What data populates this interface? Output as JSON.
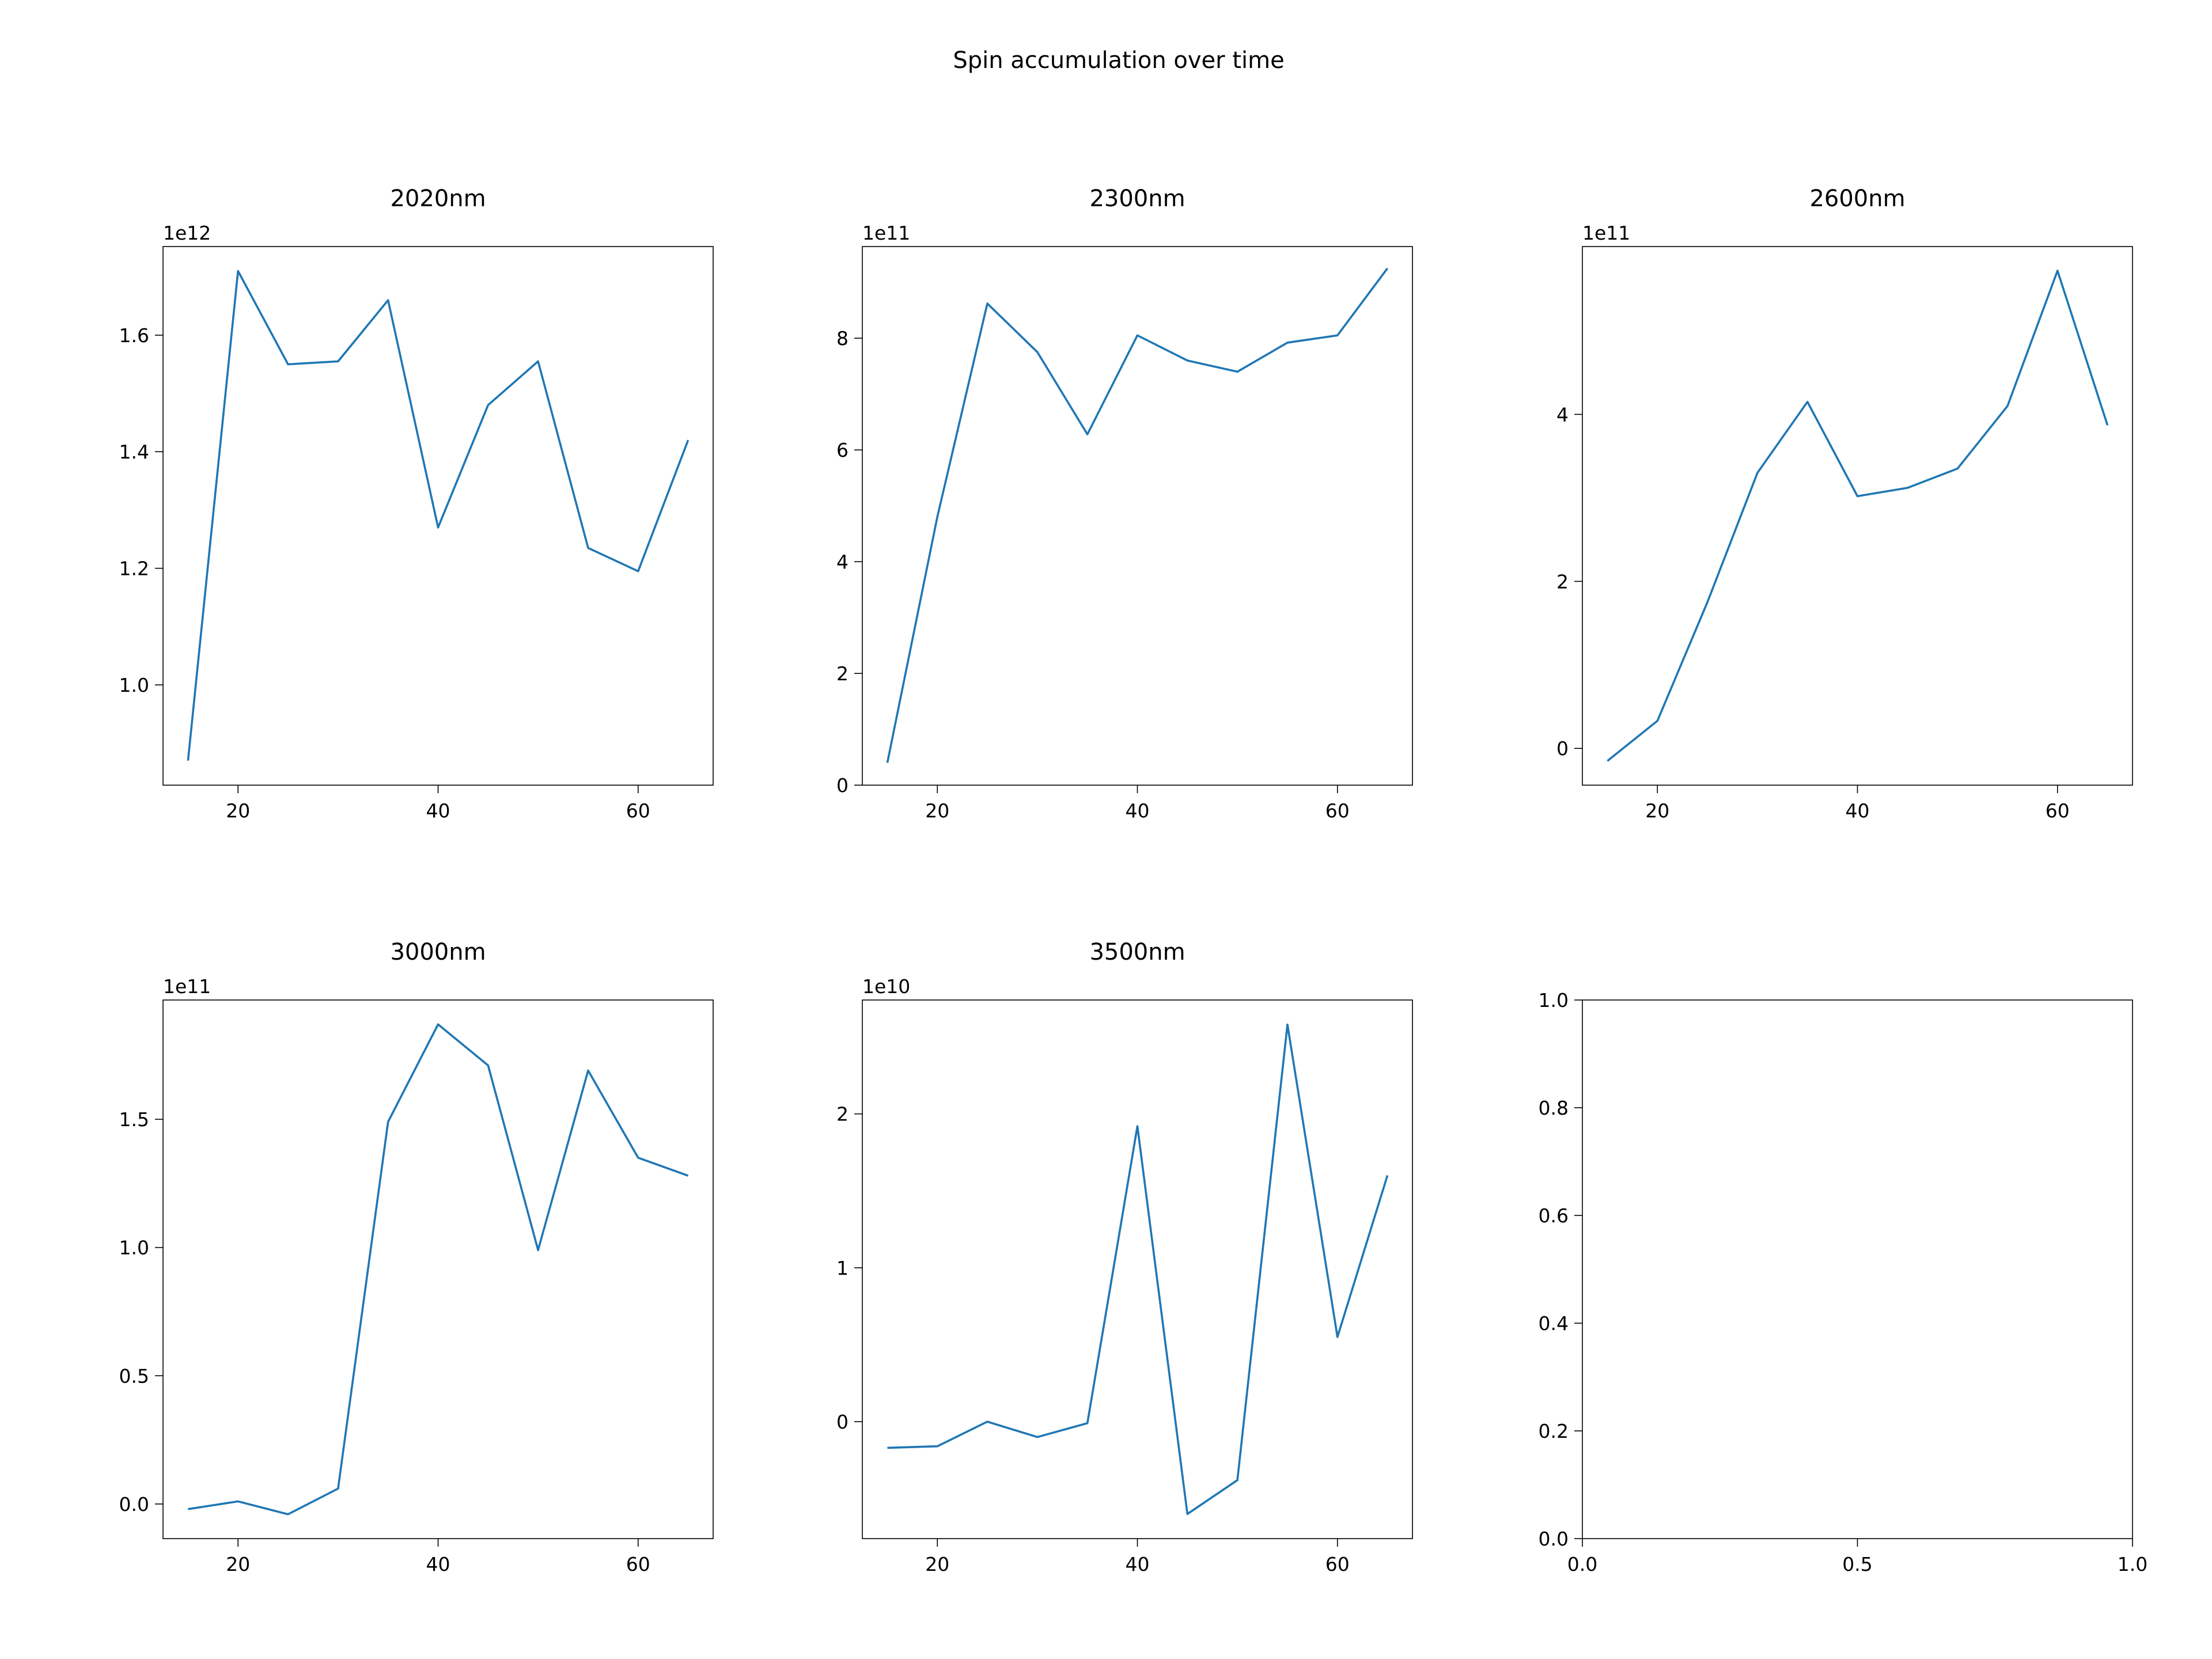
{
  "figure": {
    "suptitle": "Spin accumulation over time",
    "line_color": "#1f77b4"
  },
  "chart_data": [
    {
      "type": "line",
      "title": "2020nm",
      "xlabel": "",
      "ylabel": "",
      "offset_text": "1e12",
      "scale": 1000000000000.0,
      "x": [
        15,
        20,
        25,
        30,
        35,
        40,
        45,
        50,
        55,
        60,
        65
      ],
      "series": [
        {
          "values": [
            0.87,
            1.71,
            1.55,
            1.555,
            1.66,
            1.27,
            1.48,
            1.555,
            1.235,
            1.195,
            1.42
          ]
        }
      ],
      "xlim": [
        12.5,
        67.5
      ],
      "ylim": [
        0.828,
        1.752
      ],
      "xticks": [
        20,
        40,
        60
      ],
      "xtick_labels": [
        "20",
        "40",
        "60"
      ],
      "yticks": [
        1.0,
        1.2,
        1.4,
        1.6
      ],
      "ytick_labels": [
        "1.0",
        "1.2",
        "1.4",
        "1.6"
      ]
    },
    {
      "type": "line",
      "title": "2300nm",
      "xlabel": "",
      "ylabel": "",
      "offset_text": "1e11",
      "scale": 100000000000.0,
      "x": [
        15,
        20,
        25,
        30,
        35,
        40,
        45,
        50,
        55,
        60,
        65
      ],
      "series": [
        {
          "values": [
            0.4,
            4.8,
            8.62,
            7.75,
            6.28,
            8.05,
            7.6,
            7.4,
            7.92,
            8.05,
            9.25
          ]
        }
      ],
      "xlim": [
        12.5,
        67.5
      ],
      "ylim": [
        0.0,
        9.64
      ],
      "xticks": [
        20,
        40,
        60
      ],
      "xtick_labels": [
        "20",
        "40",
        "60"
      ],
      "yticks": [
        0,
        2,
        4,
        6,
        8
      ],
      "ytick_labels": [
        "0",
        "2",
        "4",
        "6",
        "8"
      ]
    },
    {
      "type": "line",
      "title": "2600nm",
      "xlabel": "",
      "ylabel": "",
      "offset_text": "1e11",
      "scale": 100000000000.0,
      "x": [
        15,
        20,
        25,
        30,
        35,
        40,
        45,
        50,
        55,
        60,
        65
      ],
      "series": [
        {
          "values": [
            -0.15,
            0.33,
            1.75,
            3.3,
            4.15,
            3.02,
            3.12,
            3.35,
            4.1,
            5.72,
            3.87
          ]
        }
      ],
      "xlim": [
        12.5,
        67.5
      ],
      "ylim": [
        -0.44,
        6.01
      ],
      "xticks": [
        20,
        40,
        60
      ],
      "xtick_labels": [
        "20",
        "40",
        "60"
      ],
      "yticks": [
        0,
        2,
        4
      ],
      "ytick_labels": [
        "0",
        "2",
        "4"
      ]
    },
    {
      "type": "line",
      "title": "3000nm",
      "xlabel": "",
      "ylabel": "",
      "offset_text": "1e11",
      "scale": 100000000000.0,
      "x": [
        15,
        20,
        25,
        30,
        35,
        40,
        45,
        50,
        55,
        60,
        65
      ],
      "series": [
        {
          "values": [
            -0.02,
            0.01,
            -0.04,
            0.06,
            1.49,
            1.87,
            1.71,
            0.99,
            1.69,
            1.35,
            1.28
          ]
        }
      ],
      "xlim": [
        12.5,
        67.5
      ],
      "ylim": [
        -0.135,
        1.965
      ],
      "xticks": [
        20,
        40,
        60
      ],
      "xtick_labels": [
        "20",
        "40",
        "60"
      ],
      "yticks": [
        0.0,
        0.5,
        1.0,
        1.5
      ],
      "ytick_labels": [
        "0.0",
        "0.5",
        "1.0",
        "1.5"
      ]
    },
    {
      "type": "line",
      "title": "3500nm",
      "xlabel": "",
      "ylabel": "",
      "offset_text": "1e10",
      "scale": 10000000000.0,
      "x": [
        15,
        20,
        25,
        30,
        35,
        40,
        45,
        50,
        55,
        60,
        65
      ],
      "series": [
        {
          "values": [
            -0.17,
            -0.16,
            0.0,
            -0.1,
            -0.01,
            1.92,
            -0.6,
            -0.38,
            2.58,
            0.55,
            1.6
          ]
        }
      ],
      "xlim": [
        12.5,
        67.5
      ],
      "ylim": [
        -0.76,
        2.74
      ],
      "xticks": [
        20,
        40,
        60
      ],
      "xtick_labels": [
        "20",
        "40",
        "60"
      ],
      "yticks": [
        0,
        1,
        2
      ],
      "ytick_labels": [
        "0",
        "1",
        "2"
      ]
    },
    {
      "type": "line",
      "title": "",
      "xlabel": "",
      "ylabel": "",
      "offset_text": "",
      "x": [],
      "series": [],
      "xlim": [
        0.0,
        1.0
      ],
      "ylim": [
        0.0,
        1.0
      ],
      "xticks": [
        0.0,
        0.5,
        1.0
      ],
      "xtick_labels": [
        "0.0",
        "0.5",
        "1.0"
      ],
      "yticks": [
        0.0,
        0.2,
        0.4,
        0.6,
        0.8,
        1.0
      ],
      "ytick_labels": [
        "0.0",
        "0.2",
        "0.4",
        "0.6",
        "0.8",
        "1.0"
      ]
    }
  ]
}
